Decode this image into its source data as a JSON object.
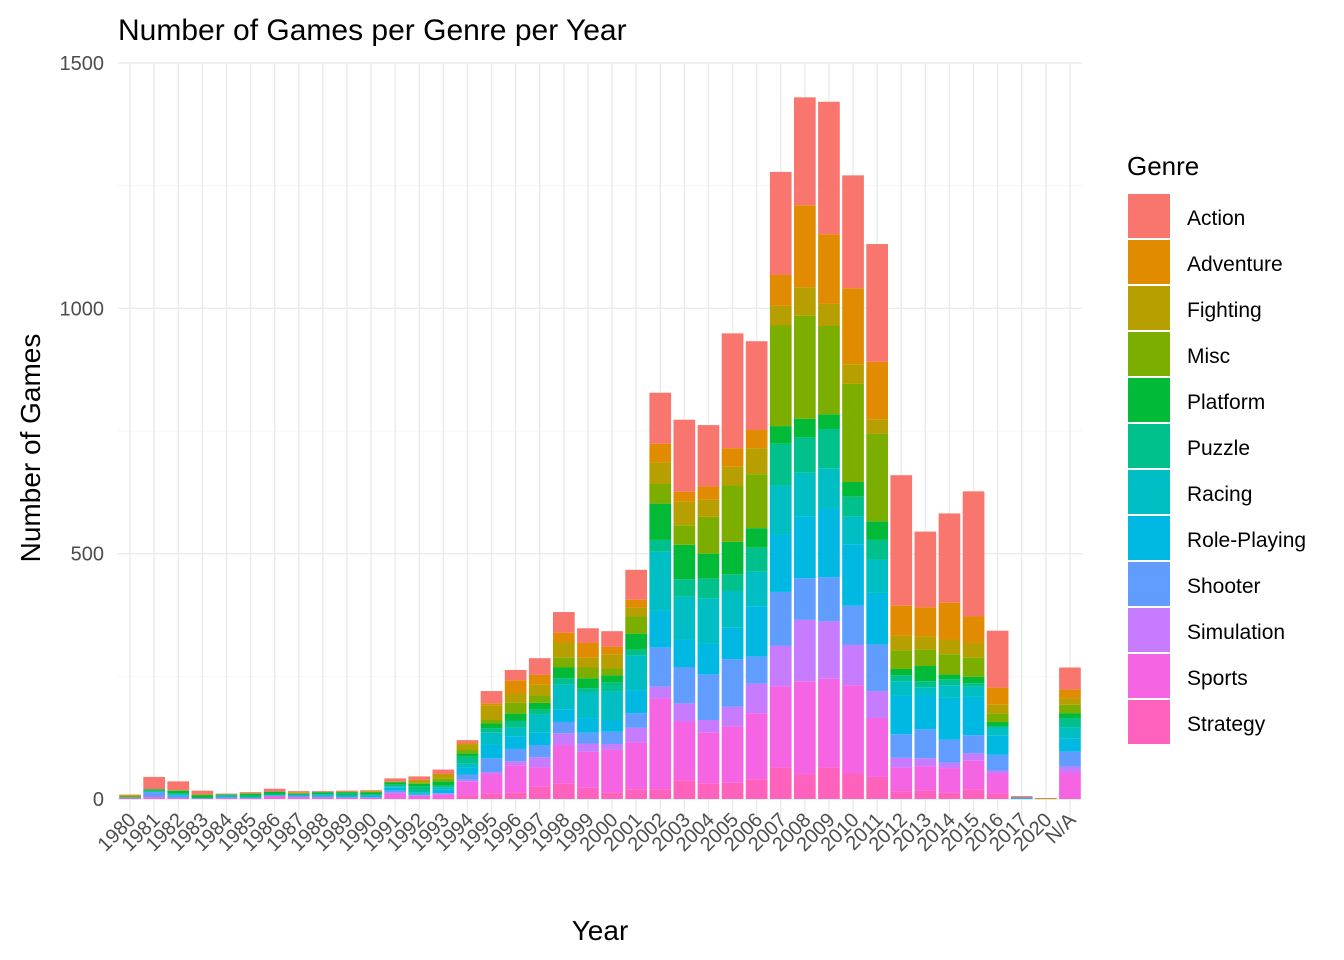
{
  "chart_data": {
    "type": "bar",
    "stacked": true,
    "title": "Number of Games per Genre per Year",
    "xlabel": "Year",
    "ylabel": "Number of Games",
    "ylim": [
      0,
      1500
    ],
    "yticks": [
      0,
      500,
      1000,
      1500
    ],
    "grid": true,
    "legend_title": "Genre",
    "legend_position": "right",
    "categories": [
      "1980",
      "1981",
      "1982",
      "1983",
      "1984",
      "1985",
      "1986",
      "1987",
      "1988",
      "1989",
      "1990",
      "1991",
      "1992",
      "1993",
      "1994",
      "1995",
      "1996",
      "1997",
      "1998",
      "1999",
      "2000",
      "2001",
      "2002",
      "2003",
      "2004",
      "2005",
      "2006",
      "2007",
      "2008",
      "2009",
      "2010",
      "2011",
      "2012",
      "2013",
      "2014",
      "2015",
      "2016",
      "2017",
      "2020",
      "N/A"
    ],
    "series": [
      {
        "name": "Strategy",
        "color": "#FF62BC",
        "values": [
          0,
          0,
          0,
          0,
          0,
          0,
          0,
          0,
          0,
          0,
          0,
          0,
          1,
          1,
          8,
          12,
          14,
          25,
          32,
          23,
          14,
          20,
          20,
          38,
          32,
          33,
          40,
          65,
          50,
          65,
          52,
          45,
          16,
          17,
          13,
          20,
          12,
          0,
          0,
          2
        ]
      },
      {
        "name": "Sports",
        "color": "#F564E3",
        "values": [
          1,
          4,
          2,
          1,
          2,
          1,
          6,
          4,
          3,
          3,
          3,
          12,
          6,
          8,
          27,
          38,
          55,
          40,
          78,
          73,
          86,
          95,
          185,
          120,
          104,
          115,
          135,
          165,
          190,
          180,
          180,
          120,
          48,
          50,
          50,
          58,
          40,
          0,
          0,
          52
        ]
      },
      {
        "name": "Simulation",
        "color": "#C77CFF",
        "values": [
          0,
          0,
          0,
          0,
          0,
          1,
          0,
          0,
          1,
          0,
          0,
          1,
          1,
          2,
          4,
          5,
          8,
          20,
          24,
          17,
          12,
          30,
          24,
          37,
          25,
          40,
          60,
          82,
          125,
          117,
          82,
          55,
          20,
          16,
          11,
          15,
          6,
          0,
          0,
          12
        ]
      },
      {
        "name": "Shooter",
        "color": "#619CFF",
        "values": [
          2,
          10,
          5,
          1,
          2,
          1,
          1,
          2,
          1,
          1,
          1,
          4,
          1,
          1,
          11,
          28,
          25,
          25,
          23,
          22,
          25,
          30,
          80,
          74,
          93,
          97,
          55,
          110,
          85,
          90,
          80,
          95,
          48,
          59,
          47,
          37,
          32,
          1,
          0,
          31
        ]
      },
      {
        "name": "Role-Playing",
        "color": "#00B9E3",
        "values": [
          0,
          0,
          0,
          0,
          0,
          0,
          1,
          3,
          3,
          2,
          2,
          7,
          3,
          7,
          14,
          28,
          26,
          25,
          26,
          30,
          23,
          47,
          75,
          56,
          63,
          64,
          103,
          117,
          125,
          140,
          125,
          105,
          78,
          70,
          85,
          78,
          40,
          2,
          0,
          26
        ]
      },
      {
        "name": "Racing",
        "color": "#00BFC4",
        "values": [
          0,
          1,
          2,
          0,
          3,
          0,
          1,
          0,
          1,
          0,
          1,
          2,
          2,
          5,
          8,
          25,
          17,
          37,
          50,
          52,
          60,
          70,
          120,
          87,
          92,
          75,
          70,
          100,
          90,
          82,
          57,
          68,
          30,
          16,
          26,
          21,
          17,
          0,
          0,
          23
        ]
      },
      {
        "name": "Puzzle",
        "color": "#00C08B",
        "values": [
          0,
          2,
          3,
          1,
          1,
          4,
          0,
          0,
          1,
          5,
          3,
          3,
          11,
          3,
          14,
          8,
          14,
          10,
          13,
          9,
          17,
          12,
          24,
          36,
          40,
          34,
          49,
          85,
          72,
          80,
          40,
          40,
          12,
          12,
          12,
          7,
          0,
          0,
          0,
          19
        ]
      },
      {
        "name": "Platform",
        "color": "#00BA38",
        "values": [
          0,
          3,
          5,
          5,
          1,
          4,
          6,
          2,
          4,
          3,
          4,
          5,
          6,
          9,
          7,
          10,
          15,
          14,
          22,
          20,
          15,
          33,
          74,
          70,
          51,
          66,
          40,
          36,
          38,
          30,
          30,
          38,
          13,
          31,
          10,
          13,
          10,
          0,
          0,
          10
        ]
      },
      {
        "name": "Misc",
        "color": "#7CAE00",
        "values": [
          4,
          0,
          1,
          1,
          1,
          0,
          0,
          0,
          0,
          1,
          1,
          1,
          3,
          5,
          8,
          7,
          22,
          15,
          20,
          22,
          14,
          35,
          40,
          40,
          75,
          115,
          110,
          205,
          210,
          180,
          200,
          178,
          38,
          34,
          41,
          39,
          17,
          0,
          1,
          17
        ]
      },
      {
        "name": "Fighting",
        "color": "#B79F00",
        "values": [
          1,
          0,
          0,
          0,
          0,
          1,
          0,
          2,
          0,
          0,
          1,
          0,
          4,
          9,
          11,
          30,
          20,
          22,
          31,
          20,
          29,
          18,
          44,
          48,
          35,
          38,
          53,
          40,
          58,
          45,
          40,
          30,
          30,
          27,
          30,
          30,
          18,
          0,
          0,
          13
        ]
      },
      {
        "name": "Adventure",
        "color": "#E08B00",
        "values": [
          0,
          0,
          0,
          1,
          0,
          0,
          0,
          1,
          0,
          0,
          1,
          1,
          1,
          1,
          2,
          4,
          26,
          20,
          20,
          30,
          15,
          16,
          38,
          20,
          27,
          38,
          37,
          63,
          167,
          142,
          155,
          117,
          61,
          59,
          75,
          54,
          35,
          0,
          0,
          18
        ]
      },
      {
        "name": "Action",
        "color": "#F8766D",
        "values": [
          1,
          25,
          18,
          7,
          1,
          2,
          6,
          2,
          2,
          2,
          1,
          6,
          7,
          9,
          6,
          25,
          21,
          34,
          42,
          30,
          32,
          61,
          104,
          147,
          125,
          234,
          181,
          210,
          220,
          270,
          230,
          240,
          266,
          154,
          182,
          255,
          116,
          3,
          1,
          45
        ]
      }
    ]
  }
}
